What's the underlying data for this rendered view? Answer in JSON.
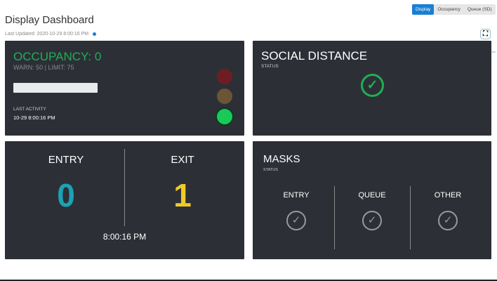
{
  "header": {
    "title": "Display Dashboard",
    "last_updated": "Last Updated: 2020-10-29 8:00:16 PM"
  },
  "tabs": [
    {
      "label": "Display",
      "active": true
    },
    {
      "label": "Occupancy",
      "active": false
    },
    {
      "label": "Queue (SD)",
      "active": false
    }
  ],
  "occupancy": {
    "title": "OCCUPANCY: 0",
    "limits": "WARN: 50 | LIMIT: 75",
    "progress": 0,
    "last_activity_label": "LAST ACTIVITY",
    "last_activity": "10-29 8:00:16 PM",
    "light_state": "green",
    "colors": {
      "value": "#1fae55",
      "red": "#6e1e22",
      "amber": "#6b5536",
      "green": "#19c95a"
    }
  },
  "social_distance": {
    "title": "SOCIAL DISTANCE",
    "status_label": "STATUS",
    "status": "ok",
    "color": "#1fae55"
  },
  "counts": {
    "entry_label": "ENTRY",
    "entry_value": "0",
    "exit_label": "EXIT",
    "exit_value": "1",
    "time": "8:00:16 PM",
    "entry_color": "#1aa3b5",
    "exit_color": "#f0c92c"
  },
  "masks": {
    "title": "MASKS",
    "status_label": "STATUS",
    "zones": [
      {
        "label": "ENTRY",
        "status": "ok"
      },
      {
        "label": "QUEUE",
        "status": "ok"
      },
      {
        "label": "OTHER",
        "status": "ok"
      }
    ]
  }
}
